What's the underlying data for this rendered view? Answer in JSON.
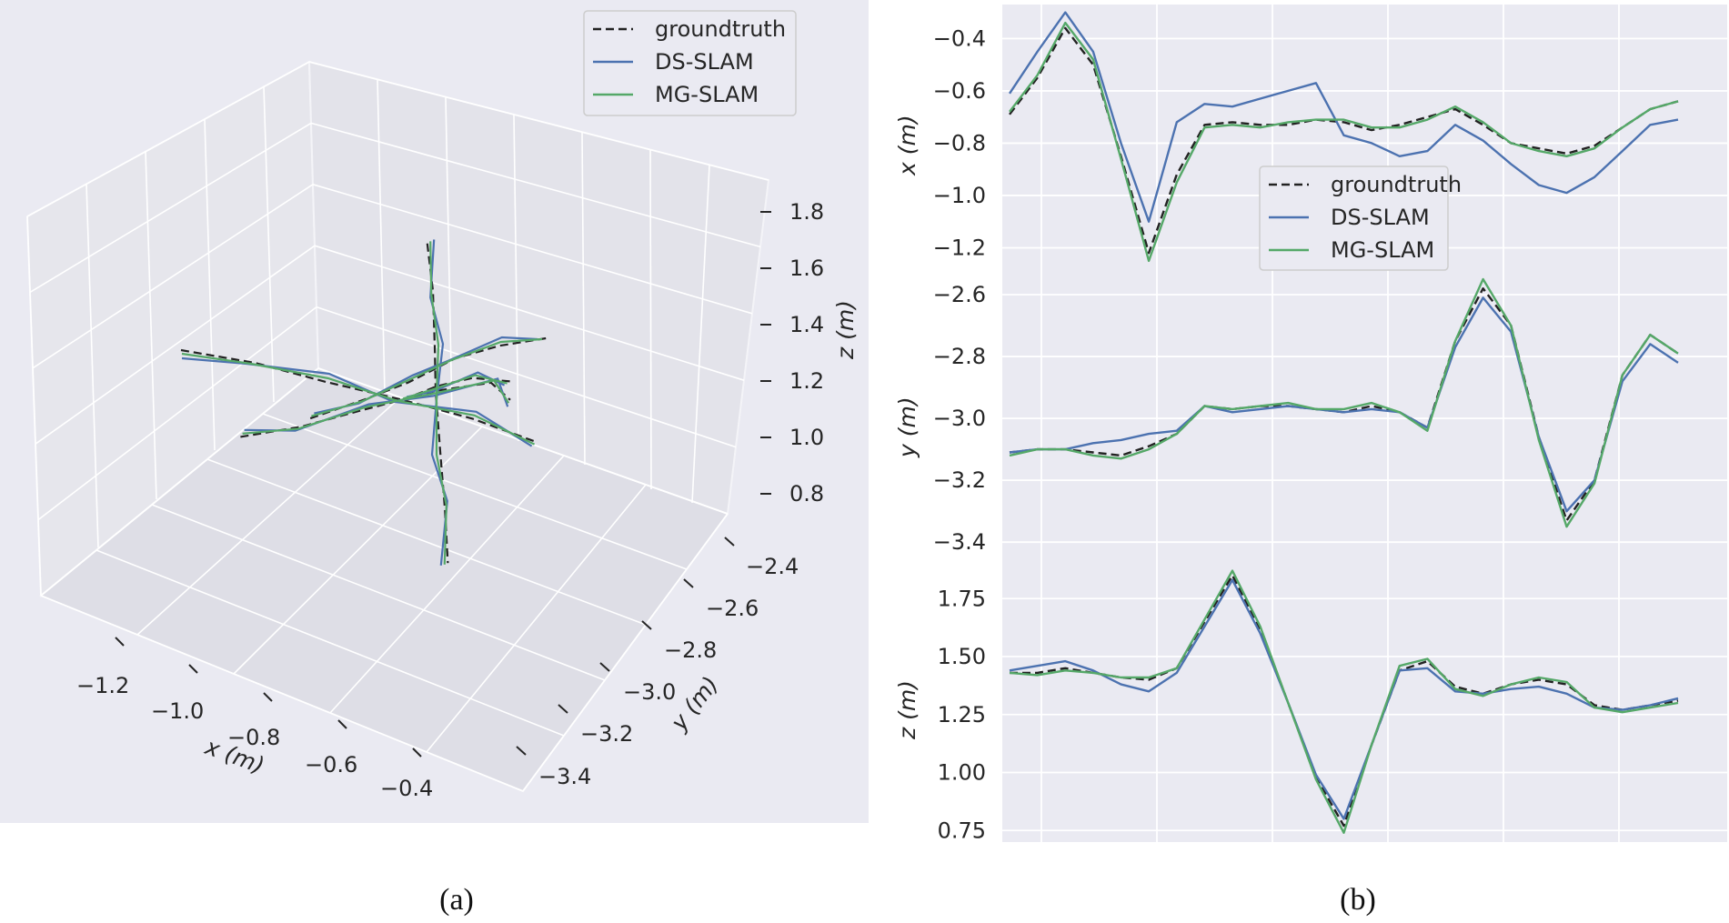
{
  "colors": {
    "groundtruth": "#222222",
    "ds_slam": "#4c72b0",
    "mg_slam": "#55a868",
    "panel_bg": "#eaeaf2",
    "grid": "#ffffff"
  },
  "captions": {
    "a": "(a)",
    "b": "(b)"
  },
  "legend": {
    "gt": "groundtruth",
    "ds": "DS-SLAM",
    "mg": "MG-SLAM"
  },
  "chart_data": [
    {
      "type": "line",
      "view": "3d",
      "xlabel": "x (m)",
      "ylabel": "y (m)",
      "zlabel": "z (m)",
      "x_ticks": [
        "−1.2",
        "−1.0",
        "−0.8",
        "−0.6",
        "−0.4"
      ],
      "y_ticks": [
        "−2.4",
        "−2.6",
        "−2.8",
        "−3.0",
        "−3.2",
        "−3.4"
      ],
      "z_ticks": [
        "1.8",
        "1.6",
        "1.4",
        "1.2",
        "1.0",
        "0.8"
      ],
      "series": [
        {
          "name": "groundtruth",
          "style": "dashed"
        },
        {
          "name": "DS-SLAM",
          "style": "solid"
        },
        {
          "name": "MG-SLAM",
          "style": "solid"
        }
      ],
      "legend_position": "top-right"
    },
    {
      "type": "line",
      "ylabel": "x (m)",
      "y_ticks": [
        "−0.4",
        "−0.6",
        "−0.8",
        "−1.0",
        "−1.2"
      ],
      "ylim": [
        -1.32,
        -0.27
      ],
      "x_index": [
        0,
        5,
        10,
        15,
        20,
        25,
        30,
        35,
        40,
        45,
        50,
        55,
        60,
        65,
        70,
        75,
        80,
        85,
        90,
        95,
        100,
        105,
        110,
        115,
        120
      ],
      "series": [
        {
          "name": "groundtruth",
          "values": [
            -0.69,
            -0.55,
            -0.36,
            -0.5,
            -0.85,
            -1.22,
            -0.92,
            -0.73,
            -0.72,
            -0.73,
            -0.73,
            -0.71,
            -0.72,
            -0.75,
            -0.73,
            -0.7,
            -0.67,
            -0.73,
            -0.8,
            -0.82,
            -0.84,
            -0.81,
            -0.74,
            -0.67,
            -0.64
          ]
        },
        {
          "name": "DS-SLAM",
          "values": [
            -0.61,
            -0.45,
            -0.3,
            -0.45,
            -0.8,
            -1.1,
            -0.72,
            -0.65,
            -0.66,
            -0.63,
            -0.6,
            -0.57,
            -0.77,
            -0.8,
            -0.85,
            -0.83,
            -0.73,
            -0.79,
            -0.88,
            -0.96,
            -0.99,
            -0.93,
            -0.83,
            -0.73,
            -0.71
          ]
        },
        {
          "name": "MG-SLAM",
          "values": [
            -0.68,
            -0.54,
            -0.34,
            -0.48,
            -0.86,
            -1.25,
            -0.95,
            -0.74,
            -0.73,
            -0.74,
            -0.72,
            -0.71,
            -0.71,
            -0.74,
            -0.74,
            -0.71,
            -0.66,
            -0.72,
            -0.8,
            -0.83,
            -0.85,
            -0.82,
            -0.74,
            -0.67,
            -0.64
          ]
        }
      ],
      "legend_position": "center"
    },
    {
      "type": "line",
      "ylabel": "y (m)",
      "y_ticks": [
        "−2.6",
        "−2.8",
        "−3.0",
        "−3.2",
        "−3.4"
      ],
      "ylim": [
        -3.47,
        -2.55
      ],
      "x_index": [
        0,
        5,
        10,
        15,
        20,
        25,
        30,
        35,
        40,
        45,
        50,
        55,
        60,
        65,
        70,
        75,
        80,
        85,
        90,
        95,
        100,
        105,
        110,
        115,
        120
      ],
      "series": [
        {
          "name": "groundtruth",
          "values": [
            -3.11,
            -3.1,
            -3.1,
            -3.11,
            -3.12,
            -3.09,
            -3.05,
            -2.96,
            -2.97,
            -2.96,
            -2.96,
            -2.97,
            -2.98,
            -2.96,
            -2.98,
            -3.03,
            -2.75,
            -2.58,
            -2.7,
            -3.06,
            -3.33,
            -3.2,
            -2.86,
            -2.73,
            -2.79
          ]
        },
        {
          "name": "DS-SLAM",
          "values": [
            -3.11,
            -3.1,
            -3.1,
            -3.08,
            -3.07,
            -3.05,
            -3.04,
            -2.96,
            -2.98,
            -2.97,
            -2.96,
            -2.97,
            -2.98,
            -2.97,
            -2.98,
            -3.03,
            -2.77,
            -2.61,
            -2.72,
            -3.06,
            -3.3,
            -3.2,
            -2.88,
            -2.76,
            -2.82
          ]
        },
        {
          "name": "MG-SLAM",
          "values": [
            -3.12,
            -3.1,
            -3.1,
            -3.12,
            -3.13,
            -3.1,
            -3.05,
            -2.96,
            -2.97,
            -2.96,
            -2.95,
            -2.97,
            -2.97,
            -2.95,
            -2.98,
            -3.04,
            -2.75,
            -2.55,
            -2.7,
            -3.07,
            -3.35,
            -3.21,
            -2.86,
            -2.73,
            -2.79
          ]
        }
      ]
    },
    {
      "type": "line",
      "ylabel": "z (m)",
      "y_ticks": [
        "1.75",
        "1.50",
        "1.25",
        "1.00",
        "0.75"
      ],
      "ylim": [
        0.7,
        1.9
      ],
      "x_index": [
        0,
        5,
        10,
        15,
        20,
        25,
        30,
        35,
        40,
        45,
        50,
        55,
        60,
        65,
        70,
        75,
        80,
        85,
        90,
        95,
        100,
        105,
        110,
        115,
        120
      ],
      "series": [
        {
          "name": "groundtruth",
          "values": [
            1.43,
            1.43,
            1.45,
            1.43,
            1.41,
            1.4,
            1.45,
            1.65,
            1.85,
            1.62,
            1.3,
            0.98,
            0.77,
            1.12,
            1.44,
            1.48,
            1.37,
            1.34,
            1.38,
            1.4,
            1.38,
            1.29,
            1.27,
            1.29,
            1.31
          ]
        },
        {
          "name": "DS-SLAM",
          "values": [
            1.44,
            1.46,
            1.48,
            1.44,
            1.38,
            1.35,
            1.43,
            1.63,
            1.83,
            1.6,
            1.3,
            0.99,
            0.8,
            1.12,
            1.44,
            1.45,
            1.35,
            1.34,
            1.36,
            1.37,
            1.34,
            1.28,
            1.27,
            1.29,
            1.32
          ]
        },
        {
          "name": "MG-SLAM",
          "values": [
            1.43,
            1.42,
            1.44,
            1.43,
            1.41,
            1.41,
            1.45,
            1.66,
            1.87,
            1.63,
            1.3,
            0.97,
            0.74,
            1.12,
            1.46,
            1.49,
            1.36,
            1.33,
            1.38,
            1.41,
            1.39,
            1.28,
            1.26,
            1.28,
            1.3
          ]
        }
      ]
    }
  ]
}
